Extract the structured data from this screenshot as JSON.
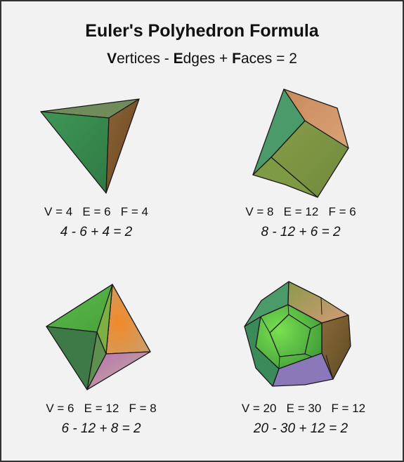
{
  "title": "Euler's Polyhedron Formula",
  "subtitle": {
    "v_letter": "V",
    "v_rest": "ertices - ",
    "e_letter": "E",
    "e_rest": "dges + ",
    "f_letter": "F",
    "f_rest": "aces = 2"
  },
  "solids": [
    {
      "stats": "V = 4   E = 6   F = 4",
      "equation": "4 - 6 + 4 = 2"
    },
    {
      "stats": "V = 8   E = 12   F = 6",
      "equation": "8 - 12 + 6 = 2"
    },
    {
      "stats": "V = 6   E = 12   F = 8",
      "equation": "6 - 12 + 8 = 2"
    },
    {
      "stats": "V = 20   E = 30   F = 12",
      "equation": "20 - 30 + 12 = 2"
    }
  ],
  "colors": {
    "green": "#3f8f54",
    "light_green": "#66c048",
    "olive": "#8c9c4a",
    "brown": "#8a5a34",
    "peach": "#d49a6c",
    "orange": "#e8922f",
    "lavender": "#a88fc6",
    "border": "#333333",
    "background": "#f2f2f2"
  }
}
